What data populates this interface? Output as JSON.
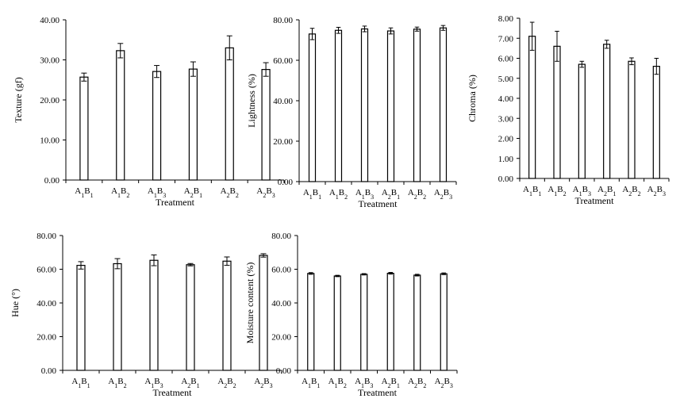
{
  "chart_data": [
    {
      "type": "bar",
      "categories": [
        "A1B1",
        "A1B2",
        "A1B3",
        "A2B1",
        "A2B2",
        "A2B3"
      ],
      "values": [
        25.7,
        32.3,
        27.1,
        27.7,
        33.0,
        27.6
      ],
      "errors": [
        1.0,
        1.8,
        1.5,
        1.8,
        3.0,
        1.7
      ],
      "xlabel": "Treatment",
      "ylabel": "Texture (gf)",
      "ylim": [
        0,
        40
      ],
      "yticks": [
        "0.00",
        "10.00",
        "20.00",
        "30.00",
        "40.00"
      ],
      "grid": false
    },
    {
      "type": "bar",
      "categories": [
        "A1B1",
        "A1B2",
        "A1B3",
        "A2B1",
        "A2B2",
        "A2B3"
      ],
      "values": [
        73.0,
        74.8,
        75.5,
        74.5,
        75.4,
        76.0
      ],
      "errors": [
        2.8,
        1.5,
        1.4,
        1.5,
        1.0,
        1.2
      ],
      "xlabel": "Treatment",
      "ylabel": "Lightness (%)",
      "ylim": [
        0,
        80
      ],
      "yticks": [
        "0.00",
        "20.00",
        "40.00",
        "60.00",
        "80.00"
      ],
      "grid": false
    },
    {
      "type": "bar",
      "categories": [
        "A1B1",
        "A1B2",
        "A1B3",
        "A2B1",
        "A2B2",
        "A2B3"
      ],
      "values": [
        7.1,
        6.6,
        5.7,
        6.7,
        5.85,
        5.6
      ],
      "errors": [
        0.7,
        0.75,
        0.15,
        0.2,
        0.17,
        0.4
      ],
      "xlabel": "Treatment",
      "ylabel": "Chroma (%)",
      "ylim": [
        0,
        8
      ],
      "yticks": [
        "0.00",
        "1.00",
        "2.00",
        "3.00",
        "4.00",
        "5.00",
        "6.00",
        "7.00",
        "8.00"
      ],
      "grid": false
    },
    {
      "type": "bar",
      "categories": [
        "A1B1",
        "A1B2",
        "A1B3",
        "A2B1",
        "A2B2",
        "A2B3"
      ],
      "values": [
        62.3,
        63.3,
        65.3,
        62.7,
        64.8,
        68.2
      ],
      "errors": [
        2.2,
        3.0,
        3.2,
        0.7,
        2.5,
        1.0
      ],
      "xlabel": "Treatment",
      "ylabel": "Hue (°)",
      "ylim": [
        0,
        80
      ],
      "yticks": [
        "0.00",
        "20.00",
        "40.00",
        "60.00",
        "80.00"
      ],
      "grid": false
    },
    {
      "type": "bar",
      "categories": [
        "A1B1",
        "A1B2",
        "A1B3",
        "A2B1",
        "A2B2",
        "A2B3"
      ],
      "values": [
        57.5,
        56.0,
        57.0,
        57.6,
        56.5,
        57.3
      ],
      "errors": [
        0.5,
        0.4,
        0.4,
        0.5,
        0.5,
        0.5
      ],
      "xlabel": "Treatment",
      "ylabel": "Moisture content (%)",
      "ylim": [
        0,
        80
      ],
      "yticks": [
        "0.00",
        "20.00",
        "40.00",
        "60.00",
        "80.00"
      ],
      "grid": false
    }
  ],
  "colors": {
    "bar_fill": "#ffffff",
    "line": "#000000"
  }
}
